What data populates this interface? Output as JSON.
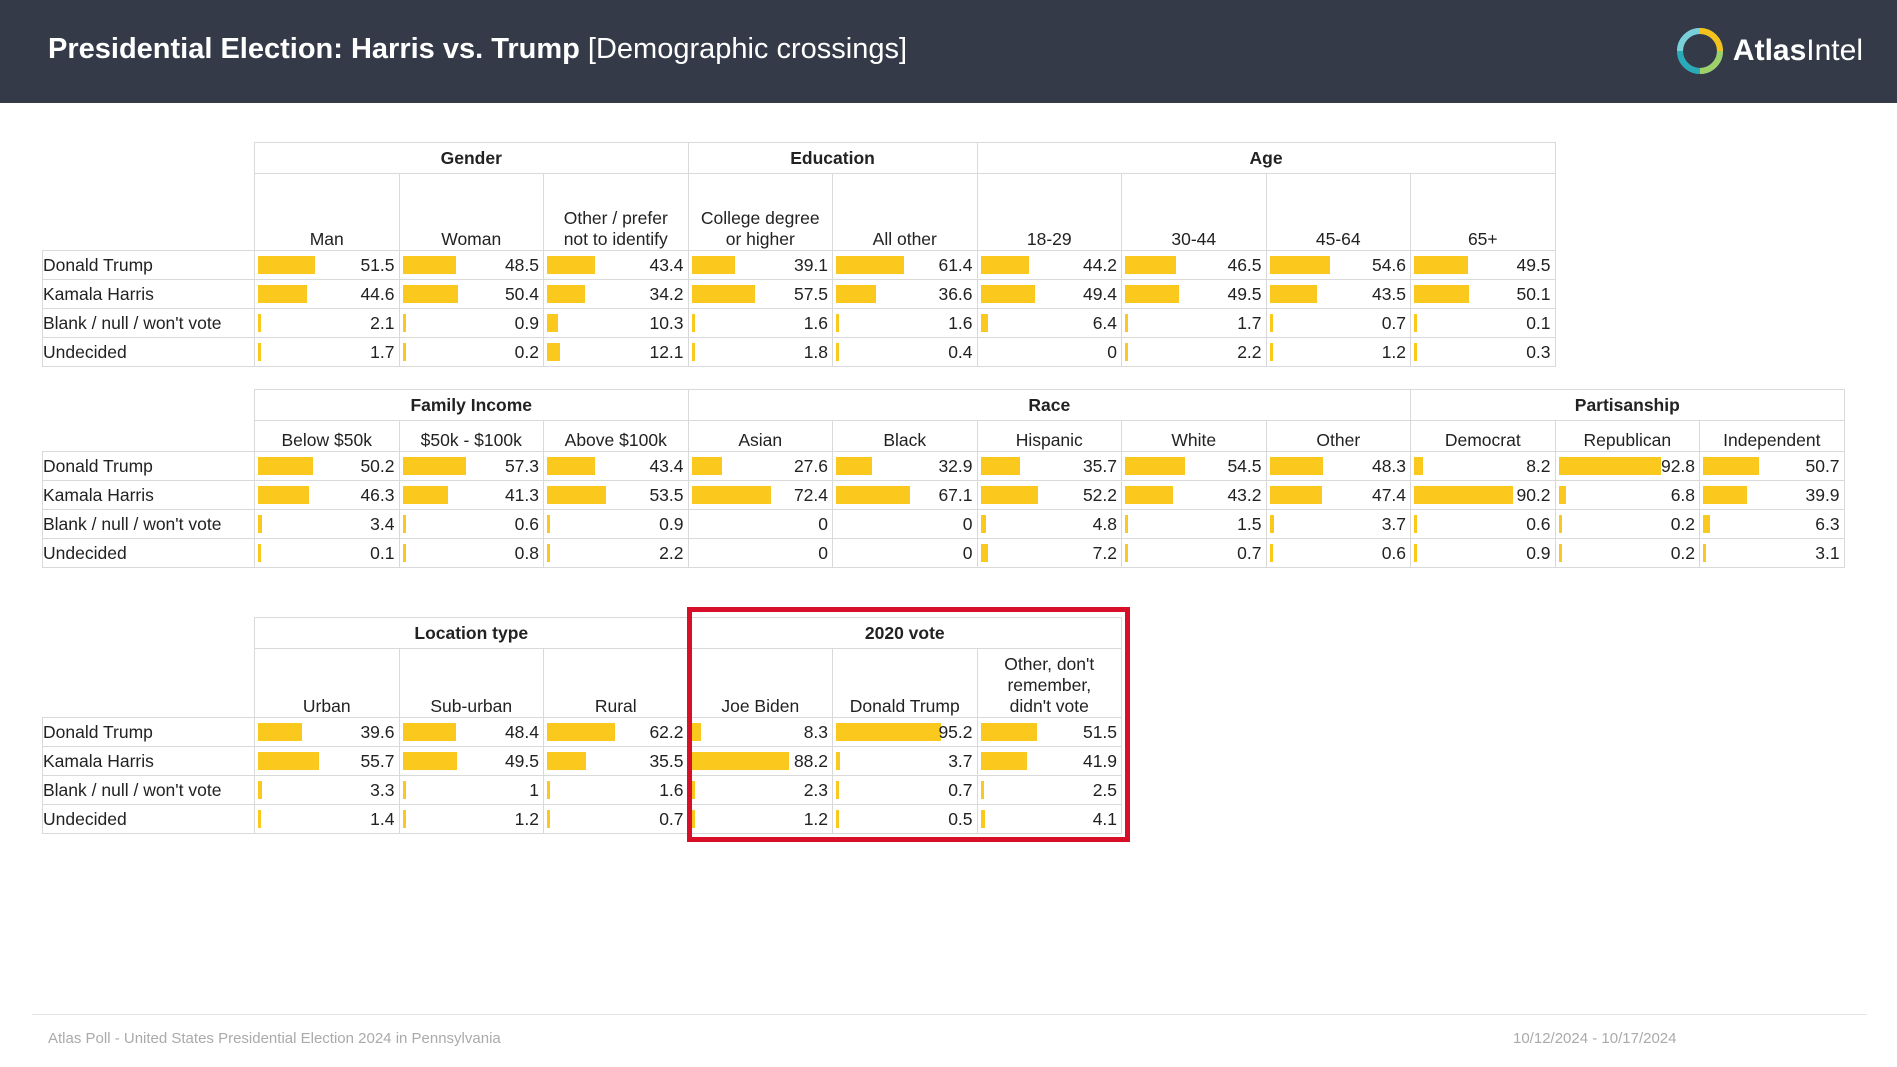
{
  "header": {
    "title_bold": "Presidential Election: Harris vs. Trump",
    "title_sub": "[Demographic crossings]",
    "logo_bold": "Atlas",
    "logo_light": "Intel"
  },
  "footer": {
    "source": "Atlas Poll - United States Presidential Election 2024 in Pennsylvania",
    "dates": "10/12/2024 - 10/17/2024"
  },
  "colors": {
    "bar": "#fbc81d",
    "header_bg": "#343a47",
    "highlight": "#d70f28"
  },
  "chart_data": [
    {
      "type": "table",
      "title": "Gender / Education / Age",
      "rows": [
        "Donald Trump",
        "Kamala Harris",
        "Blank / null / won't vote",
        "Undecided"
      ],
      "groups": [
        {
          "name": "Gender",
          "columns": [
            "Man",
            "Woman",
            "Other / prefer\nnot to identify"
          ]
        },
        {
          "name": "Education",
          "columns": [
            "College degree\nor higher",
            "All other"
          ]
        },
        {
          "name": "Age",
          "columns": [
            "18-29",
            "30-44",
            "45-64",
            "65+"
          ]
        }
      ],
      "values": [
        [
          "51.5",
          "48.5",
          "43.4",
          "39.1",
          "61.4",
          "44.2",
          "46.5",
          "54.6",
          "49.5"
        ],
        [
          "44.6",
          "50.4",
          "34.2",
          "57.5",
          "36.6",
          "49.4",
          "49.5",
          "43.5",
          "50.1"
        ],
        [
          "2.1",
          "0.9",
          "10.3",
          "1.6",
          "1.6",
          "6.4",
          "1.7",
          "0.7",
          "0.1"
        ],
        [
          "1.7",
          "0.2",
          "12.1",
          "1.8",
          "0.4",
          "0",
          "2.2",
          "1.2",
          "0.3"
        ]
      ]
    },
    {
      "type": "table",
      "title": "Family Income / Race / Partisanship",
      "rows": [
        "Donald Trump",
        "Kamala Harris",
        "Blank / null / won't vote",
        "Undecided"
      ],
      "groups": [
        {
          "name": "Family Income",
          "columns": [
            "Below $50k",
            "$50k - $100k",
            "Above $100k"
          ]
        },
        {
          "name": "Race",
          "columns": [
            "Asian",
            "Black",
            "Hispanic",
            "White",
            "Other"
          ]
        },
        {
          "name": "Partisanship",
          "columns": [
            "Democrat",
            "Republican",
            "Independent"
          ]
        }
      ],
      "values": [
        [
          "50.2",
          "57.3",
          "43.4",
          "27.6",
          "32.9",
          "35.7",
          "54.5",
          "48.3",
          "8.2",
          "92.8",
          "50.7"
        ],
        [
          "46.3",
          "41.3",
          "53.5",
          "72.4",
          "67.1",
          "52.2",
          "43.2",
          "47.4",
          "90.2",
          "6.8",
          "39.9"
        ],
        [
          "3.4",
          "0.6",
          "0.9",
          "0",
          "0",
          "4.8",
          "1.5",
          "3.7",
          "0.6",
          "0.2",
          "6.3"
        ],
        [
          "0.1",
          "0.8",
          "2.2",
          "0",
          "0",
          "7.2",
          "0.7",
          "0.6",
          "0.9",
          "0.2",
          "3.1"
        ]
      ]
    },
    {
      "type": "table",
      "title": "Location type / 2020 vote",
      "rows": [
        "Donald Trump",
        "Kamala Harris",
        "Blank / null / won't vote",
        "Undecided"
      ],
      "groups": [
        {
          "name": "Location type",
          "columns": [
            "Urban",
            "Sub-urban",
            "Rural"
          ]
        },
        {
          "name": "2020 vote",
          "columns": [
            "Joe Biden",
            "Donald Trump",
            "Other, don't\nremember,\ndidn't vote"
          ]
        }
      ],
      "values": [
        [
          "39.6",
          "48.4",
          "62.2",
          "8.3",
          "95.2",
          "51.5"
        ],
        [
          "55.7",
          "49.5",
          "35.5",
          "88.2",
          "3.7",
          "41.9"
        ],
        [
          "3.3",
          "1",
          "1.6",
          "2.3",
          "0.7",
          "2.5"
        ],
        [
          "1.4",
          "1.2",
          "0.7",
          "1.2",
          "0.5",
          "4.1"
        ]
      ]
    }
  ]
}
